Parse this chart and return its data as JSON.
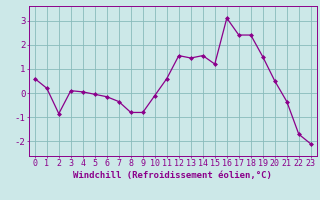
{
  "x": [
    0,
    1,
    2,
    3,
    4,
    5,
    6,
    7,
    8,
    9,
    10,
    11,
    12,
    13,
    14,
    15,
    16,
    17,
    18,
    19,
    20,
    21,
    22,
    23
  ],
  "y": [
    0.6,
    0.2,
    -0.85,
    0.1,
    0.05,
    -0.05,
    -0.15,
    -0.35,
    -0.8,
    -0.8,
    -0.1,
    0.6,
    1.55,
    1.45,
    1.55,
    1.2,
    3.1,
    2.4,
    2.4,
    1.5,
    0.5,
    -0.35,
    -1.7,
    -2.1
  ],
  "xlim": [
    -0.5,
    23.5
  ],
  "ylim": [
    -2.6,
    3.6
  ],
  "yticks": [
    -2,
    -1,
    0,
    1,
    2,
    3
  ],
  "xticks": [
    0,
    1,
    2,
    3,
    4,
    5,
    6,
    7,
    8,
    9,
    10,
    11,
    12,
    13,
    14,
    15,
    16,
    17,
    18,
    19,
    20,
    21,
    22,
    23
  ],
  "xtick_labels": [
    "0",
    "1",
    "2",
    "3",
    "4",
    "5",
    "6",
    "7",
    "8",
    "9",
    "10",
    "11",
    "12",
    "13",
    "14",
    "15",
    "16",
    "17",
    "18",
    "19",
    "20",
    "21",
    "22",
    "23"
  ],
  "ytick_labels": [
    "",
    "-1",
    "",
    "1",
    "2",
    "3"
  ],
  "xlabel": "Windchill (Refroidissement éolien,°C)",
  "line_color": "#8B008B",
  "marker": "D",
  "marker_size": 2.0,
  "bg_color": "#cce8e8",
  "grid_color": "#88bbbb",
  "label_color": "#8B008B",
  "tick_color": "#8B008B",
  "spine_color": "#8B008B",
  "font_size_xlabel": 6.5,
  "font_size_ticks": 6.0
}
